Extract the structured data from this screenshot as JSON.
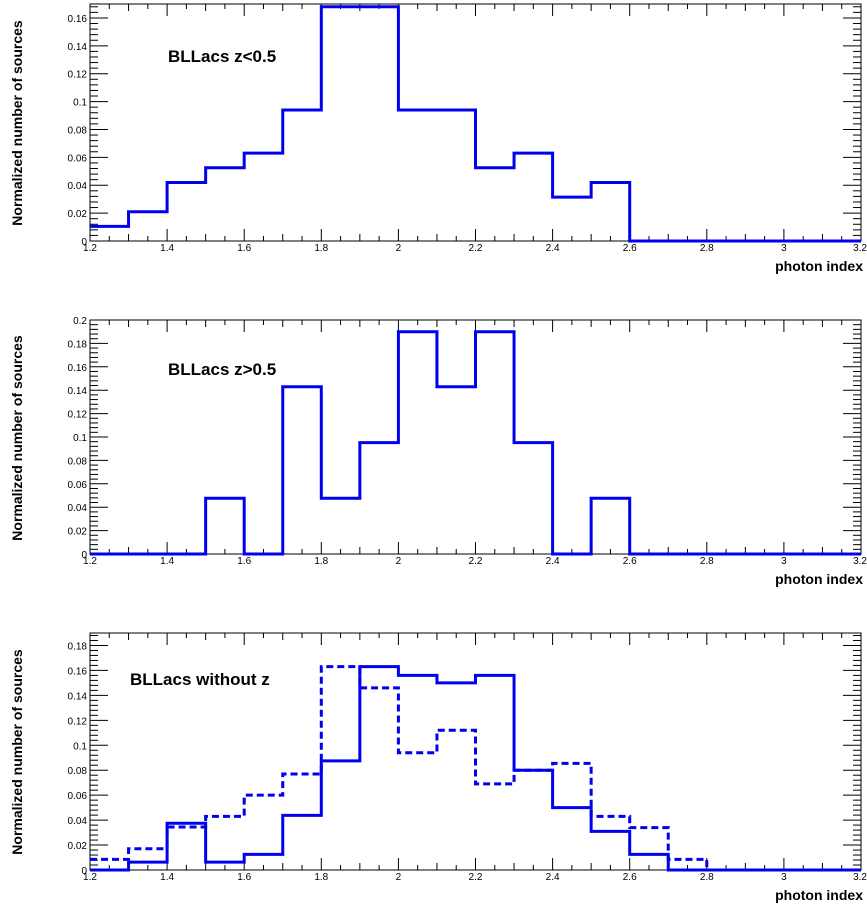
{
  "chart_data": [
    {
      "type": "histogram",
      "title": "BLLacs z<0.5",
      "xlabel": "photon index",
      "ylabel": "Normalized number of sources",
      "xlim": [
        1.2,
        3.2
      ],
      "ylim": [
        0,
        0.17
      ],
      "xticks": [
        "1.2",
        "1.4",
        "1.6",
        "1.8",
        "2",
        "2.2",
        "2.4",
        "2.6",
        "2.8",
        "3",
        "3.2"
      ],
      "yticks": [
        "0",
        "0.02",
        "0.04",
        "0.06",
        "0.08",
        "0.1",
        "0.12",
        "0.14",
        "0.16"
      ],
      "bin_edges": [
        1.2,
        1.3,
        1.4,
        1.5,
        1.6,
        1.7,
        1.8,
        1.9,
        2.0,
        2.1,
        2.2,
        2.3,
        2.4,
        2.5,
        2.6,
        2.7,
        2.8,
        2.9,
        3.0,
        3.1,
        3.2
      ],
      "series": [
        {
          "style": "solid",
          "color": "#0000ee",
          "values": [
            0.0105,
            0.021,
            0.042,
            0.0525,
            0.063,
            0.094,
            0.168,
            0.168,
            0.094,
            0.094,
            0.0525,
            0.063,
            0.0315,
            0.042,
            0,
            0,
            0,
            0,
            0,
            0
          ]
        }
      ]
    },
    {
      "type": "histogram",
      "title": "BLLacs z>0.5",
      "xlabel": "photon index",
      "ylabel": "Normalized number of sources",
      "xlim": [
        1.2,
        3.2
      ],
      "ylim": [
        0,
        0.2
      ],
      "xticks": [
        "1.2",
        "1.4",
        "1.6",
        "1.8",
        "2",
        "2.2",
        "2.4",
        "2.6",
        "2.8",
        "3",
        "3.2"
      ],
      "yticks": [
        "0",
        "0.02",
        "0.04",
        "0.06",
        "0.08",
        "0.1",
        "0.12",
        "0.14",
        "0.16",
        "0.18",
        "0.2"
      ],
      "bin_edges": [
        1.2,
        1.3,
        1.4,
        1.5,
        1.6,
        1.7,
        1.8,
        1.9,
        2.0,
        2.1,
        2.2,
        2.3,
        2.4,
        2.5,
        2.6,
        2.7,
        2.8,
        2.9,
        3.0,
        3.1,
        3.2
      ],
      "series": [
        {
          "style": "solid",
          "color": "#0000ee",
          "values": [
            0,
            0,
            0,
            0.0476,
            0,
            0.143,
            0.0476,
            0.0952,
            0.19,
            0.143,
            0.19,
            0.0952,
            0,
            0.0476,
            0,
            0,
            0,
            0,
            0,
            0
          ]
        }
      ]
    },
    {
      "type": "histogram",
      "title": "BLLacs without z",
      "xlabel": "photon index",
      "ylabel": "Normalized number of sources",
      "xlim": [
        1.2,
        3.2
      ],
      "ylim": [
        0,
        0.19
      ],
      "xticks": [
        "1.2",
        "1.4",
        "1.6",
        "1.8",
        "2",
        "2.2",
        "2.4",
        "2.6",
        "2.8",
        "3",
        "3.2"
      ],
      "yticks": [
        "0",
        "0.02",
        "0.04",
        "0.06",
        "0.08",
        "0.1",
        "0.12",
        "0.14",
        "0.16",
        "0.18"
      ],
      "bin_edges": [
        1.2,
        1.3,
        1.4,
        1.5,
        1.6,
        1.7,
        1.8,
        1.9,
        2.0,
        2.1,
        2.2,
        2.3,
        2.4,
        2.5,
        2.6,
        2.7,
        2.8,
        2.9,
        3.0,
        3.1,
        3.2
      ],
      "series": [
        {
          "style": "solid",
          "color": "#0000ee",
          "values": [
            0,
            0.0063,
            0.0375,
            0.0063,
            0.0125,
            0.0438,
            0.0875,
            0.163,
            0.156,
            0.15,
            0.156,
            0.08,
            0.05,
            0.031,
            0.0125,
            0,
            0,
            0,
            0,
            0
          ]
        },
        {
          "style": "dashed",
          "color": "#0000ee",
          "values": [
            0.0085,
            0.017,
            0.0345,
            0.043,
            0.06,
            0.077,
            0.163,
            0.146,
            0.094,
            0.112,
            0.069,
            0.08,
            0.0855,
            0.043,
            0.034,
            0.0085,
            0,
            0,
            0,
            0
          ]
        }
      ]
    }
  ]
}
